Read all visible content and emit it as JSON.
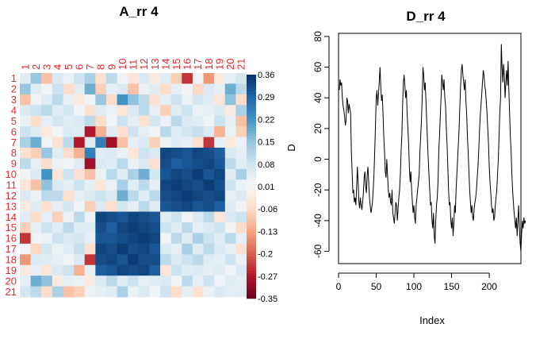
{
  "chart_data": [
    {
      "type": "heatmap",
      "title": "A_rr 4",
      "row_labels": [
        "1",
        "2",
        "3",
        "4",
        "5",
        "6",
        "7",
        "8",
        "9",
        "10",
        "11",
        "12",
        "13",
        "14",
        "15",
        "16",
        "17",
        "18",
        "19",
        "20",
        "21"
      ],
      "col_labels": [
        "1",
        "2",
        "3",
        "4",
        "5",
        "6",
        "7",
        "8",
        "9",
        "10",
        "11",
        "12",
        "13",
        "14",
        "15",
        "16",
        "17",
        "18",
        "19",
        "20",
        "21"
      ],
      "colorbar_label": "D",
      "colorbar_ticks": [
        "0.36",
        "0.29",
        "0.22",
        "0.15",
        "0.08",
        "0.01",
        "-0.06",
        "-0.13",
        "-0.2",
        "-0.27",
        "-0.35"
      ],
      "colorbar_range": [
        -0.35,
        0.36
      ],
      "colorscale": [
        "#67001f",
        "#b2182b",
        "#d6604d",
        "#f4a582",
        "#fddbc7",
        "#f7f7f7",
        "#d1e5f0",
        "#92c5de",
        "#4393c3",
        "#2166ac",
        "#053061"
      ],
      "values": [
        [
          0.05,
          0.14,
          -0.1,
          0.06,
          0.03,
          0.08,
          0.12,
          -0.05,
          0.1,
          0.02,
          -0.04,
          0.06,
          -0.03,
          0.05,
          -0.08,
          -0.25,
          0.02,
          -0.15,
          -0.03,
          0.04,
          0.07
        ],
        [
          0.14,
          0.05,
          0.02,
          0.08,
          -0.06,
          0.05,
          0.18,
          -0.08,
          0.04,
          0.06,
          -0.1,
          0.03,
          0.05,
          -0.06,
          0.04,
          0.02,
          -0.07,
          0.06,
          0.04,
          0.18,
          0.1
        ],
        [
          -0.1,
          0.02,
          0.05,
          0.1,
          0.04,
          -0.03,
          0.02,
          0.14,
          -0.06,
          0.22,
          0.15,
          0.1,
          -0.05,
          0.04,
          0.08,
          0.03,
          0.07,
          0.05,
          -0.04,
          0.15,
          -0.06
        ],
        [
          0.06,
          0.08,
          0.1,
          0.05,
          0.07,
          0.02,
          -0.05,
          0.05,
          0.03,
          -0.04,
          0.06,
          0.1,
          0.04,
          -0.08,
          0.05,
          0.08,
          0.03,
          0.04,
          0.06,
          -0.03,
          0.12
        ],
        [
          0.03,
          -0.06,
          0.04,
          0.07,
          0.05,
          0.06,
          0.1,
          -0.06,
          0.02,
          0.08,
          0.04,
          -0.05,
          0.07,
          0.03,
          0.1,
          0.06,
          0.05,
          0.02,
          0.08,
          0.04,
          -0.1
        ],
        [
          0.08,
          0.05,
          -0.03,
          0.02,
          0.06,
          0.05,
          -0.28,
          -0.12,
          0.05,
          -0.05,
          0.08,
          0.04,
          0.02,
          0.1,
          0.05,
          0.07,
          0.09,
          0.06,
          -0.12,
          0.03,
          -0.08
        ],
        [
          0.12,
          0.18,
          0.02,
          -0.05,
          0.1,
          -0.28,
          0.05,
          0.25,
          -0.3,
          -0.1,
          0.04,
          0.06,
          -0.08,
          0.03,
          0.05,
          0.04,
          -0.05,
          -0.25,
          0.04,
          -0.03,
          0.03
        ],
        [
          -0.05,
          -0.08,
          0.14,
          0.05,
          -0.06,
          -0.12,
          0.25,
          0.05,
          0.06,
          0.03,
          -0.04,
          0.08,
          0.06,
          0.33,
          0.32,
          0.31,
          0.33,
          0.32,
          0.3,
          0.06,
          0.04
        ],
        [
          0.1,
          0.04,
          -0.06,
          0.03,
          0.02,
          0.05,
          -0.3,
          0.06,
          0.05,
          0.1,
          0.03,
          0.06,
          -0.05,
          0.32,
          0.3,
          0.31,
          0.32,
          0.33,
          0.31,
          0.1,
          0.05
        ],
        [
          0.02,
          0.06,
          0.22,
          -0.04,
          0.08,
          -0.05,
          -0.1,
          0.03,
          0.1,
          0.05,
          0.12,
          0.18,
          0.07,
          0.31,
          0.33,
          0.32,
          0.34,
          0.31,
          0.33,
          0.05,
          0.12
        ],
        [
          -0.04,
          -0.1,
          0.15,
          0.06,
          0.04,
          0.08,
          0.04,
          -0.04,
          0.03,
          0.12,
          0.05,
          0.1,
          0.04,
          0.33,
          0.34,
          0.33,
          0.32,
          0.34,
          0.32,
          0.08,
          0.03
        ],
        [
          0.06,
          0.03,
          0.1,
          0.1,
          -0.05,
          0.04,
          0.06,
          0.08,
          0.06,
          0.18,
          0.1,
          0.05,
          0.1,
          0.32,
          0.33,
          0.34,
          0.33,
          0.32,
          0.33,
          0.04,
          0.06
        ],
        [
          -0.03,
          0.05,
          -0.05,
          0.04,
          0.07,
          0.02,
          -0.08,
          0.06,
          -0.05,
          0.07,
          0.04,
          0.1,
          0.05,
          0.31,
          0.32,
          0.33,
          0.31,
          0.32,
          0.3,
          0.05,
          0.02
        ],
        [
          0.05,
          -0.06,
          0.04,
          -0.08,
          0.03,
          0.1,
          0.03,
          0.33,
          0.32,
          0.31,
          0.33,
          0.32,
          0.31,
          0.05,
          0.08,
          0.02,
          0.06,
          0.1,
          -0.04,
          0.06,
          0.08
        ],
        [
          -0.08,
          0.04,
          0.08,
          0.05,
          0.1,
          0.05,
          0.05,
          0.32,
          0.3,
          0.33,
          0.34,
          0.33,
          0.32,
          0.08,
          0.05,
          0.1,
          0.04,
          0.06,
          0.08,
          0.02,
          -0.06
        ],
        [
          -0.25,
          0.02,
          0.03,
          0.08,
          0.06,
          0.07,
          0.04,
          0.31,
          0.31,
          0.32,
          0.33,
          0.34,
          0.33,
          0.02,
          0.1,
          0.05,
          0.12,
          0.08,
          0.05,
          0.1,
          0.04
        ],
        [
          0.02,
          -0.07,
          0.07,
          0.03,
          0.05,
          0.09,
          -0.05,
          0.33,
          0.32,
          0.34,
          0.32,
          0.33,
          0.31,
          0.06,
          0.04,
          0.12,
          0.05,
          0.1,
          0.06,
          0.04,
          -0.05
        ],
        [
          -0.15,
          0.06,
          0.05,
          0.04,
          0.02,
          0.06,
          -0.25,
          0.32,
          0.33,
          0.31,
          0.34,
          0.32,
          0.32,
          0.1,
          0.06,
          0.08,
          0.1,
          0.05,
          0.04,
          0.08,
          0.03
        ],
        [
          -0.03,
          0.04,
          -0.04,
          0.06,
          0.08,
          -0.12,
          0.04,
          0.3,
          0.31,
          0.33,
          0.32,
          0.33,
          0.3,
          -0.04,
          0.08,
          0.05,
          0.06,
          0.04,
          0.05,
          0.02,
          0.06
        ],
        [
          0.04,
          0.18,
          0.15,
          -0.03,
          0.04,
          0.03,
          -0.03,
          0.06,
          0.1,
          0.05,
          0.08,
          0.04,
          0.05,
          0.06,
          0.02,
          0.1,
          0.04,
          0.08,
          0.02,
          0.05,
          0.04
        ],
        [
          0.07,
          0.1,
          -0.06,
          0.12,
          -0.1,
          -0.08,
          0.03,
          0.04,
          0.05,
          0.12,
          0.03,
          0.06,
          0.02,
          0.08,
          -0.06,
          0.04,
          -0.05,
          0.03,
          0.06,
          0.04,
          0.05
        ]
      ]
    },
    {
      "type": "line",
      "title": "D_rr 4",
      "xlabel": "Index",
      "ylabel": "",
      "xlim": [
        0,
        242
      ],
      "ylim": [
        -68,
        82
      ],
      "xticks": [
        0,
        50,
        100,
        150,
        200
      ],
      "yticks": [
        -60,
        -40,
        -20,
        0,
        20,
        40,
        60,
        80
      ],
      "series": [
        {
          "color": "#000000",
          "x_start": 1,
          "y": [
            45,
            52,
            48,
            50,
            40,
            35,
            32,
            28,
            22,
            25,
            40,
            38,
            30,
            36,
            33,
            30,
            5,
            -8,
            -22,
            -20,
            -28,
            -25,
            -30,
            -18,
            -5,
            -15,
            -28,
            -32,
            -25,
            -30,
            -33,
            -28,
            -22,
            -12,
            -8,
            -18,
            -22,
            -10,
            -5,
            -15,
            -25,
            -30,
            -35,
            -32,
            -28,
            -20,
            -10,
            5,
            22,
            40,
            45,
            35,
            42,
            50,
            60,
            48,
            38,
            42,
            30,
            15,
            5,
            -8,
            -12,
            0,
            -10,
            -20,
            -25,
            -22,
            -28,
            -30,
            -20,
            -35,
            -38,
            -42,
            -35,
            -28,
            -30,
            -40,
            -32,
            -25,
            -20,
            -10,
            5,
            15,
            35,
            50,
            55,
            48,
            40,
            45,
            30,
            20,
            10,
            -5,
            -15,
            -8,
            -20,
            -28,
            -35,
            -30,
            -38,
            -42,
            -30,
            -25,
            -20,
            -15,
            -10,
            5,
            15,
            25,
            40,
            60,
            55,
            45,
            50,
            38,
            25,
            12,
            0,
            -10,
            -20,
            -30,
            -28,
            -40,
            -45,
            -35,
            -50,
            -55,
            -40,
            -30,
            -25,
            -15,
            5,
            15,
            28,
            40,
            55,
            50,
            45,
            52,
            40,
            35,
            20,
            10,
            -5,
            -20,
            -30,
            -28,
            -40,
            -45,
            -38,
            -50,
            -42,
            -30,
            -35,
            -20,
            -10,
            0,
            10,
            20,
            35,
            48,
            58,
            62,
            55,
            50,
            45,
            52,
            38,
            30,
            15,
            5,
            -8,
            -20,
            -28,
            -35,
            -30,
            -38,
            -40,
            -32,
            -28,
            -25,
            -20,
            -12,
            -5,
            5,
            18,
            28,
            35,
            42,
            50,
            58,
            55,
            48,
            45,
            38,
            30,
            20,
            10,
            -5,
            -15,
            -22,
            -30,
            -35,
            -32,
            -40,
            -38,
            -30,
            -25,
            -20,
            -10,
            0,
            15,
            30,
            40,
            75,
            60,
            50,
            62,
            55,
            40,
            50,
            58,
            48,
            64,
            45,
            30,
            15,
            5,
            -10,
            -20,
            -28,
            -35,
            -40,
            -45,
            -38,
            -50,
            -40,
            -30,
            -45,
            -55,
            -60,
            -48,
            -40,
            -45,
            -38,
            -42,
            -40
          ]
        }
      ]
    }
  ]
}
